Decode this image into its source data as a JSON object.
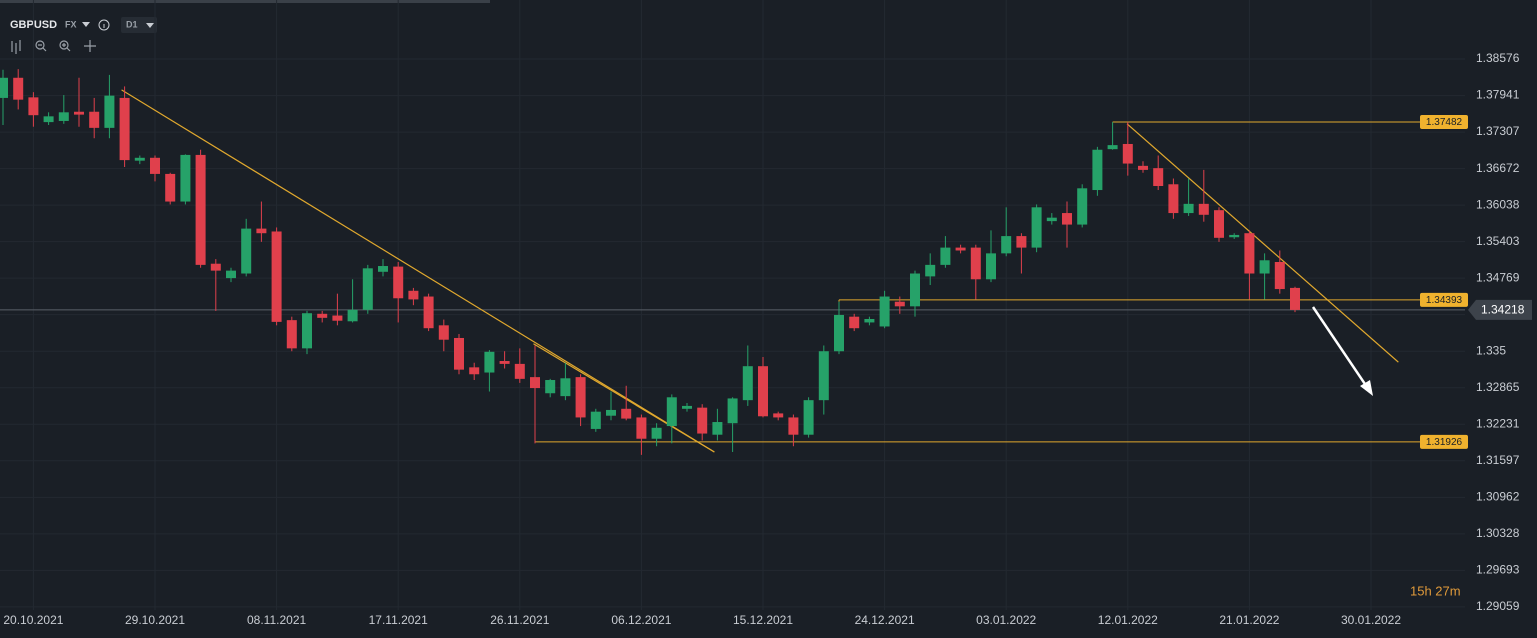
{
  "toolbar": {
    "symbol": "GBPUSD",
    "market": "FX",
    "timeframe": "D1"
  },
  "chart_data": {
    "type": "candlestick",
    "categories": [
      null,
      null,
      "20.10.2021",
      null,
      null,
      null,
      null,
      null,
      null,
      null,
      "29.10.2021",
      null,
      null,
      null,
      null,
      null,
      null,
      null,
      "08.11.2021",
      null,
      null,
      null,
      null,
      null,
      null,
      null,
      "17.11.2021",
      null,
      null,
      null,
      null,
      null,
      null,
      null,
      "26.11.2021",
      null,
      null,
      null,
      null,
      null,
      null,
      null,
      "06.12.2021",
      null,
      null,
      null,
      null,
      null,
      null,
      null,
      "15.12.2021",
      null,
      null,
      null,
      null,
      null,
      null,
      null,
      "24.12.2021",
      null,
      null,
      null,
      null,
      null,
      null,
      null,
      "03.01.2022",
      null,
      null,
      null,
      null,
      null,
      null,
      null,
      "12.01.2022",
      null,
      null,
      null,
      null,
      null,
      null,
      null,
      "21.01.2022",
      null,
      null,
      null,
      null,
      null,
      null,
      null,
      "30.01.2022"
    ],
    "open": [
      1.379,
      1.3825,
      1.3791,
      1.3748,
      1.375,
      1.3766,
      1.3766,
      1.3738,
      1.379,
      1.3681,
      1.3686,
      1.3658,
      1.361,
      1.3691,
      1.3502,
      1.3477,
      1.3485,
      1.3563,
      1.3558,
      1.3404,
      1.3355,
      1.3415,
      1.3412,
      1.3402,
      1.3422,
      1.3488,
      1.3497,
      1.3455,
      1.3445,
      1.3395,
      1.3373,
      1.3322,
      1.3313,
      1.3333,
      1.3328,
      1.3305,
      1.3277,
      1.3272,
      1.3305,
      1.3215,
      1.3238,
      1.325,
      1.3235,
      1.3198,
      1.322,
      1.325,
      1.3252,
      1.3205,
      1.3225,
      1.3265,
      1.3324,
      1.3242,
      1.3235,
      1.3205,
      1.3265,
      1.335,
      1.341,
      1.34,
      1.3393,
      1.3436,
      1.3428,
      1.348,
      1.35,
      1.353,
      1.353,
      1.3475,
      1.352,
      1.355,
      1.353,
      1.3576,
      1.359,
      1.357,
      1.363,
      1.3701,
      1.371,
      1.3672,
      1.3668,
      1.364,
      1.359,
      1.3606,
      1.3595,
      1.3548,
      1.3555,
      1.3485,
      1.3505,
      1.346,
      null,
      null,
      null,
      null,
      null
    ],
    "high": [
      1.3839,
      1.384,
      1.38,
      1.3765,
      1.3795,
      1.3825,
      1.379,
      1.383,
      1.381,
      1.369,
      1.369,
      1.366,
      1.3692,
      1.37,
      1.351,
      1.3495,
      1.358,
      1.361,
      1.3565,
      1.341,
      1.342,
      1.342,
      1.345,
      1.3475,
      1.35,
      1.351,
      1.3505,
      1.346,
      1.345,
      1.3405,
      1.338,
      1.333,
      1.3352,
      1.335,
      1.3355,
      1.336,
      1.3302,
      1.333,
      1.331,
      1.325,
      1.328,
      1.329,
      1.324,
      1.3225,
      1.3275,
      1.326,
      1.3258,
      1.325,
      1.327,
      1.336,
      1.334,
      1.3245,
      1.324,
      1.327,
      1.336,
      1.3436,
      1.3415,
      1.341,
      1.3455,
      1.3445,
      1.349,
      1.352,
      1.355,
      1.3535,
      1.3535,
      1.356,
      1.36,
      1.3555,
      1.3605,
      1.359,
      1.361,
      1.364,
      1.3705,
      1.3748,
      1.3748,
      1.368,
      1.369,
      1.365,
      1.365,
      1.3665,
      1.36,
      1.3555,
      1.356,
      1.352,
      1.3525,
      1.3462,
      null,
      null,
      null,
      null,
      null
    ],
    "low": [
      1.3743,
      1.377,
      1.374,
      1.3743,
      1.3745,
      1.374,
      1.372,
      1.372,
      1.367,
      1.3675,
      1.3645,
      1.3605,
      1.3605,
      1.3495,
      1.342,
      1.347,
      1.348,
      1.354,
      1.3395,
      1.335,
      1.3345,
      1.34,
      1.3395,
      1.34,
      1.3415,
      1.348,
      1.34,
      1.343,
      1.3385,
      1.335,
      1.331,
      1.33,
      1.328,
      1.332,
      1.3295,
      1.319,
      1.327,
      1.3265,
      1.322,
      1.321,
      1.323,
      1.323,
      1.317,
      1.3185,
      1.319,
      1.3245,
      1.3195,
      1.3195,
      1.3175,
      1.3255,
      1.3235,
      1.323,
      1.3185,
      1.32,
      1.324,
      1.3345,
      1.3385,
      1.3395,
      1.339,
      1.3415,
      1.341,
      1.3465,
      1.3495,
      1.352,
      1.344,
      1.347,
      1.3515,
      1.3485,
      1.3522,
      1.357,
      1.353,
      1.3565,
      1.362,
      1.37,
      1.3655,
      1.366,
      1.363,
      1.358,
      1.3585,
      1.3575,
      1.354,
      1.3545,
      1.344,
      1.344,
      1.345,
      1.3418,
      null,
      null,
      null,
      null,
      null
    ],
    "close": [
      1.3825,
      1.3787,
      1.376,
      1.3758,
      1.3765,
      1.3761,
      1.3738,
      1.3794,
      1.3682,
      1.3686,
      1.3658,
      1.361,
      1.3691,
      1.35,
      1.349,
      1.349,
      1.3563,
      1.3555,
      1.3401,
      1.3355,
      1.3416,
      1.3408,
      1.3403,
      1.3422,
      1.3494,
      1.3498,
      1.3442,
      1.344,
      1.339,
      1.337,
      1.3318,
      1.331,
      1.3349,
      1.3328,
      1.3302,
      1.3286,
      1.33,
      1.3303,
      1.3235,
      1.3245,
      1.3248,
      1.3233,
      1.3198,
      1.3217,
      1.327,
      1.3255,
      1.3207,
      1.3227,
      1.3268,
      1.3324,
      1.3237,
      1.3235,
      1.3205,
      1.3265,
      1.335,
      1.3413,
      1.339,
      1.3406,
      1.3445,
      1.3428,
      1.3485,
      1.35,
      1.353,
      1.3525,
      1.3475,
      1.352,
      1.355,
      1.353,
      1.36,
      1.3582,
      1.357,
      1.3633,
      1.37,
      1.3708,
      1.3676,
      1.3665,
      1.3637,
      1.359,
      1.3606,
      1.3587,
      1.3547,
      1.3552,
      1.3485,
      1.3508,
      1.3458,
      1.34218,
      null,
      null,
      null,
      null,
      null
    ],
    "up_color": "#26a269",
    "down_color": "#e0404c",
    "level_color": "#e0a82e",
    "ylim": [
      1.29005,
      1.39601
    ],
    "yticks": [
      1.38576,
      1.37941,
      1.37307,
      1.36672,
      1.36038,
      1.35403,
      1.34769,
      1.34135,
      1.335,
      1.32865,
      1.32231,
      1.31597,
      1.30962,
      1.30328,
      1.29693,
      1.29059
    ],
    "grid": true,
    "levels": [
      {
        "value": 1.37482,
        "start": 73
      },
      {
        "value": 1.34393,
        "start": 55
      },
      {
        "value": 1.31926,
        "start": 35
      }
    ],
    "trendlines": [
      {
        "start": [
          7.8,
          1.3804
        ],
        "end": [
          46.8,
          1.3175
        ]
      },
      {
        "start": [
          34.9,
          1.3363
        ],
        "end": [
          46.8,
          1.3175
        ]
      },
      {
        "start": [
          73.95,
          1.3745
        ],
        "end": [
          91.8,
          1.3331
        ]
      }
    ],
    "last_price": 1.34218,
    "countdown": "15h 27m"
  }
}
